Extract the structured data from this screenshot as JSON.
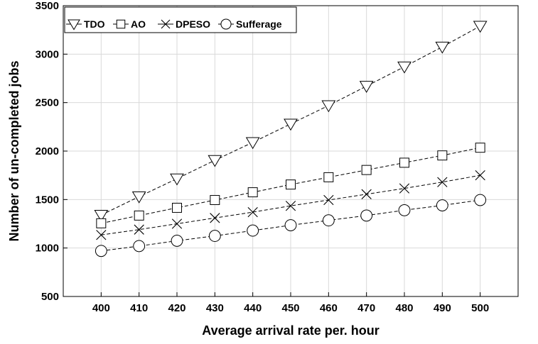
{
  "chart_data": {
    "type": "line",
    "title": "",
    "xlabel": "Average arrival rate per. hour",
    "ylabel": "Number of un-completed jobs",
    "x": [
      400,
      410,
      420,
      430,
      440,
      450,
      460,
      470,
      480,
      490,
      500
    ],
    "xlim": [
      390,
      510
    ],
    "ylim": [
      500,
      3500
    ],
    "yticks": [
      500,
      1000,
      1500,
      2000,
      2500,
      3000,
      3500
    ],
    "grid": true,
    "legend_position": "top-left",
    "series": [
      {
        "name": "TDO",
        "marker": "triangle-down",
        "values": [
          1340,
          1530,
          1715,
          1905,
          2090,
          2280,
          2470,
          2670,
          2870,
          3075,
          3290
        ]
      },
      {
        "name": "AO",
        "marker": "square",
        "values": [
          1255,
          1335,
          1415,
          1495,
          1575,
          1655,
          1730,
          1805,
          1880,
          1955,
          2035
        ]
      },
      {
        "name": "DPESO",
        "marker": "x",
        "values": [
          1135,
          1190,
          1250,
          1310,
          1370,
          1435,
          1495,
          1555,
          1615,
          1680,
          1750
        ]
      },
      {
        "name": "Sufferage",
        "marker": "circle",
        "values": [
          970,
          1020,
          1075,
          1125,
          1180,
          1235,
          1285,
          1335,
          1390,
          1440,
          1495
        ]
      }
    ]
  }
}
